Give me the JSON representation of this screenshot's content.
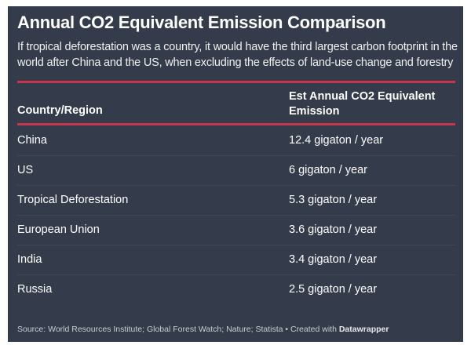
{
  "title": "Annual CO2 Equivalent Emission Comparison",
  "subtitle": "If tropical deforestation was a country, it would have the third largest carbon footprint in the world after China and the US, when excluding the effects of land-use change and forestry",
  "accent_color": "#c8354c",
  "background_color": "#343c4b",
  "table": {
    "headers": [
      "Country/Region",
      "Est Annual CO2 Equivalent Emission"
    ],
    "rows": [
      [
        "China",
        "12.4 gigaton / year"
      ],
      [
        "US",
        "6 gigaton / year"
      ],
      [
        "Tropical Deforestation",
        "5.3 gigaton / year"
      ],
      [
        "European Union",
        "3.6 gigaton / year"
      ],
      [
        "India",
        "3.4 gigaton / year"
      ],
      [
        "Russia",
        "2.5 gigaton / year"
      ]
    ]
  },
  "footer": {
    "source": "Source: World Resources Institute; Global Forest Watch; Nature; Statista • Created with ",
    "tool": "Datawrapper"
  }
}
